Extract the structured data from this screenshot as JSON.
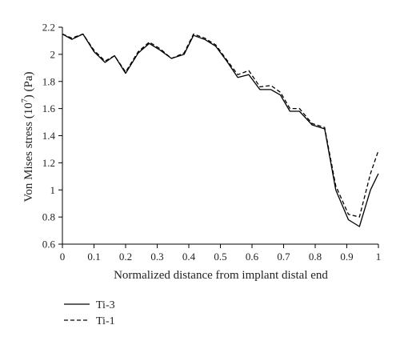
{
  "chart_data": {
    "type": "line",
    "title": "",
    "xlabel": "Normalized distance from implant distal end",
    "ylabel_main": "Von Mises stress (10",
    "ylabel_exp": "7",
    "ylabel_tail": ") (Pa)",
    "xlim": [
      0,
      1
    ],
    "ylim": [
      0.6,
      2.2
    ],
    "x_ticks": [
      0,
      0.1,
      0.2,
      0.3,
      0.4,
      0.5,
      0.6,
      0.7,
      0.8,
      0.9,
      1
    ],
    "x_tick_labels": [
      "0",
      "0.1",
      "0.2",
      "0.3",
      "0.4",
      "0.5",
      "0.6",
      "0.7",
      "0.8",
      "0.9",
      "1"
    ],
    "y_ticks": [
      0.6,
      0.8,
      1,
      1.2,
      1.4,
      1.6,
      1.8,
      2,
      2.2
    ],
    "y_tick_labels": [
      "0.6",
      "0.8",
      "1",
      "1.2",
      "1.4",
      "1.6",
      "1.8",
      "2",
      "2.2"
    ],
    "grid": false,
    "legend_position": "bottom-left",
    "series": [
      {
        "name": "Ti-3",
        "style": "solid",
        "color": "#000000",
        "x": [
          0,
          0.03,
          0.065,
          0.1,
          0.135,
          0.165,
          0.2,
          0.24,
          0.275,
          0.31,
          0.345,
          0.385,
          0.415,
          0.45,
          0.485,
          0.52,
          0.555,
          0.59,
          0.625,
          0.66,
          0.69,
          0.72,
          0.75,
          0.79,
          0.83,
          0.865,
          0.905,
          0.94,
          0.975,
          1
        ],
        "y": [
          2.15,
          2.11,
          2.15,
          2.02,
          1.94,
          1.99,
          1.86,
          2.01,
          2.08,
          2.03,
          1.97,
          2.0,
          2.14,
          2.11,
          2.06,
          1.95,
          1.83,
          1.85,
          1.74,
          1.74,
          1.7,
          1.58,
          1.58,
          1.48,
          1.45,
          1.0,
          0.78,
          0.73,
          1.0,
          1.12
        ]
      },
      {
        "name": "Ti-1",
        "style": "dashed",
        "color": "#000000",
        "x": [
          0,
          0.03,
          0.065,
          0.1,
          0.135,
          0.165,
          0.2,
          0.24,
          0.275,
          0.31,
          0.345,
          0.385,
          0.415,
          0.45,
          0.485,
          0.52,
          0.555,
          0.59,
          0.625,
          0.66,
          0.69,
          0.72,
          0.75,
          0.79,
          0.83,
          0.865,
          0.905,
          0.94,
          0.975,
          1
        ],
        "y": [
          2.15,
          2.12,
          2.15,
          2.03,
          1.95,
          1.99,
          1.87,
          2.02,
          2.09,
          2.04,
          1.97,
          2.01,
          2.15,
          2.12,
          2.07,
          1.96,
          1.85,
          1.88,
          1.76,
          1.77,
          1.72,
          1.6,
          1.6,
          1.49,
          1.46,
          1.03,
          0.82,
          0.8,
          1.12,
          1.29
        ]
      }
    ]
  }
}
